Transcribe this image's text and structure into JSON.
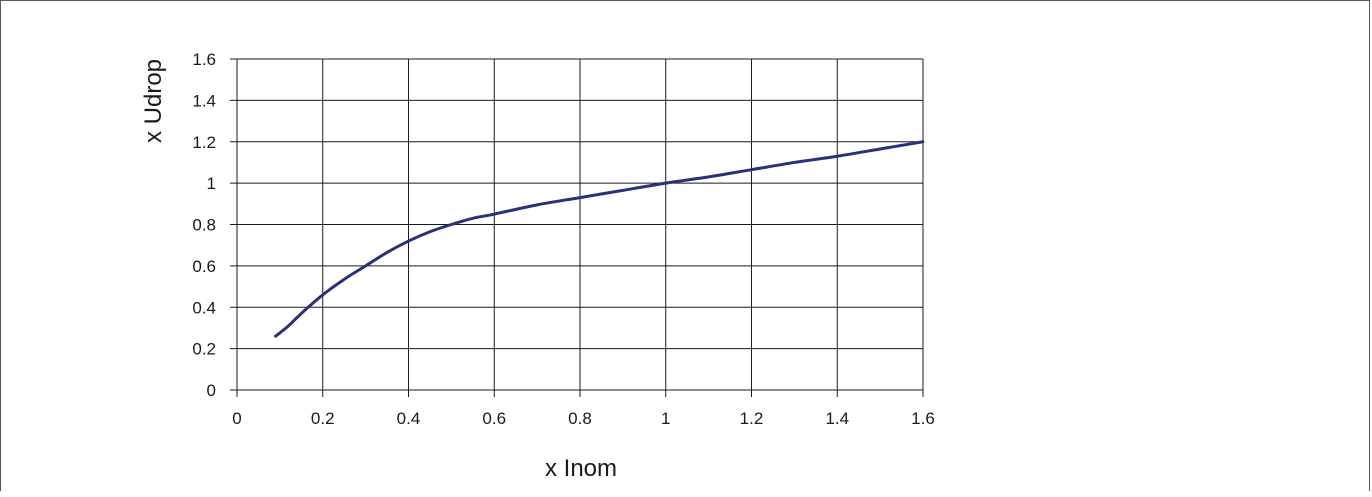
{
  "chart_data": {
    "type": "line",
    "title": "",
    "xlabel": "x Inom",
    "ylabel": "x Udrop",
    "xlim": [
      0,
      1.6
    ],
    "ylim": [
      0,
      1.6
    ],
    "x_ticks": [
      "0",
      "0.2",
      "0.4",
      "0.6",
      "0.8",
      "1",
      "1.2",
      "1.4",
      "1.6"
    ],
    "y_ticks": [
      "0",
      "0.2",
      "0.4",
      "0.6",
      "0.8",
      "1",
      "1.2",
      "1.4",
      "1.6"
    ],
    "grid": true,
    "legend": "none",
    "series": [
      {
        "color": "#2b3176",
        "x": [
          0.09,
          0.12,
          0.15,
          0.2,
          0.25,
          0.3,
          0.35,
          0.4,
          0.45,
          0.5,
          0.55,
          0.6,
          0.7,
          0.8,
          0.9,
          1.0,
          1.1,
          1.2,
          1.3,
          1.4,
          1.5,
          1.6
        ],
        "y": [
          0.26,
          0.31,
          0.37,
          0.46,
          0.535,
          0.6,
          0.665,
          0.72,
          0.765,
          0.8,
          0.83,
          0.85,
          0.895,
          0.93,
          0.965,
          1.0,
          1.03,
          1.065,
          1.1,
          1.13,
          1.165,
          1.2
        ]
      }
    ]
  }
}
